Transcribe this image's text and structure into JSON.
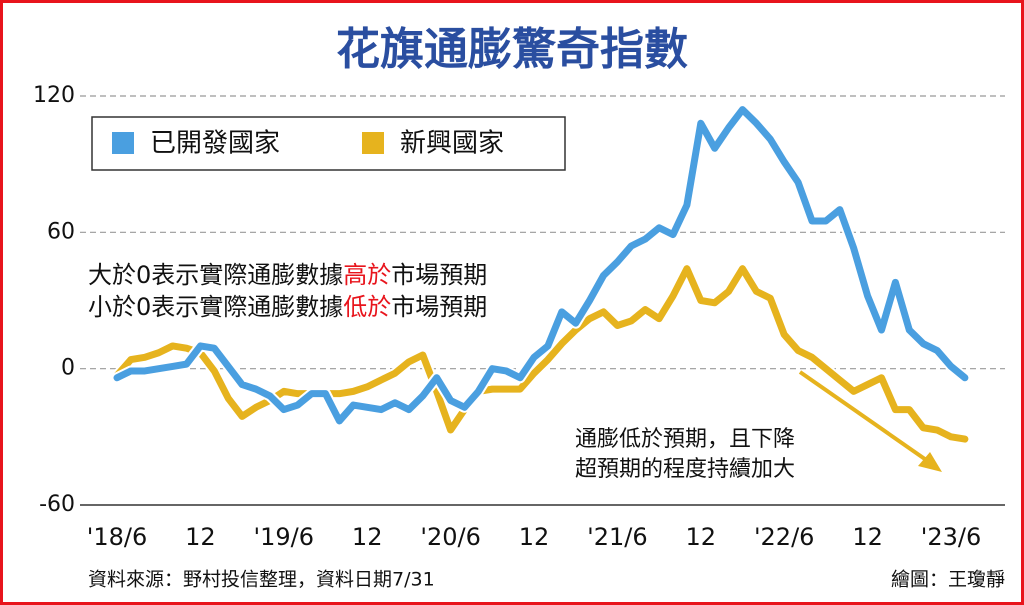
{
  "chart_data": {
    "type": "line",
    "title": "花旗通膨驚奇指數",
    "categories": [
      "'18/6",
      null,
      null,
      null,
      null,
      null,
      "12",
      null,
      null,
      null,
      null,
      null,
      "'19/6",
      null,
      null,
      null,
      null,
      null,
      "12",
      null,
      null,
      null,
      null,
      null,
      "'20/6",
      null,
      null,
      null,
      null,
      null,
      "12",
      null,
      null,
      null,
      null,
      null,
      "'21/6",
      null,
      null,
      null,
      null,
      null,
      "12",
      null,
      null,
      null,
      null,
      null,
      "'22/6",
      null,
      null,
      null,
      null,
      null,
      "12",
      null,
      null,
      null,
      null,
      null,
      "'23/6",
      null
    ],
    "series": [
      {
        "name": "已開發國家",
        "color": "#4a9fe0",
        "values": [
          -4,
          -1,
          -1,
          0,
          1,
          2,
          10,
          9,
          1,
          -7,
          -9,
          -12,
          -18,
          -16,
          -11,
          -11,
          -23,
          -16,
          -17,
          -18,
          -15,
          -18,
          -12,
          -4,
          -14,
          -17,
          -10,
          0,
          -1,
          -4,
          5,
          10,
          25,
          20,
          30,
          41,
          47,
          54,
          57,
          62,
          59,
          72,
          108,
          97,
          106,
          114,
          108,
          101,
          91,
          82,
          65,
          65,
          70,
          53,
          32,
          17,
          38,
          17,
          11,
          8,
          1,
          -4
        ]
      },
      {
        "name": "新興國家",
        "color": "#e6b31e",
        "values": [
          -3,
          4,
          5,
          7,
          10,
          9,
          7,
          -1,
          -13,
          -21,
          -17,
          -14,
          -10,
          -11,
          -11,
          -11,
          -11,
          -10,
          -8,
          -5,
          -2,
          3,
          6,
          -10,
          -27,
          -18,
          -10,
          -9,
          -9,
          -9,
          -2,
          4,
          11,
          17,
          22,
          25,
          19,
          21,
          26,
          22,
          32,
          44,
          30,
          29,
          34,
          44,
          34,
          31,
          15,
          8,
          5,
          0,
          -5,
          -10,
          -7,
          -4,
          -18,
          -18,
          -26,
          -27,
          -30,
          -31
        ]
      }
    ],
    "ylim": [
      -60,
      120
    ],
    "yticks": [
      -60,
      0,
      60,
      120
    ],
    "grid": true,
    "annotations": [
      [
        "大於0表示實際通膨數據",
        "高於",
        "市場預期"
      ],
      [
        "小於0表示實際通膨數據",
        "低於",
        "市場預期"
      ]
    ],
    "arrow_note": [
      "通膨低於預期，且下降",
      "超預期的程度持續加大"
    ],
    "source": "資料來源：野村投信整理，資料日期7/31",
    "credit": "繪圖：王瓊靜"
  }
}
